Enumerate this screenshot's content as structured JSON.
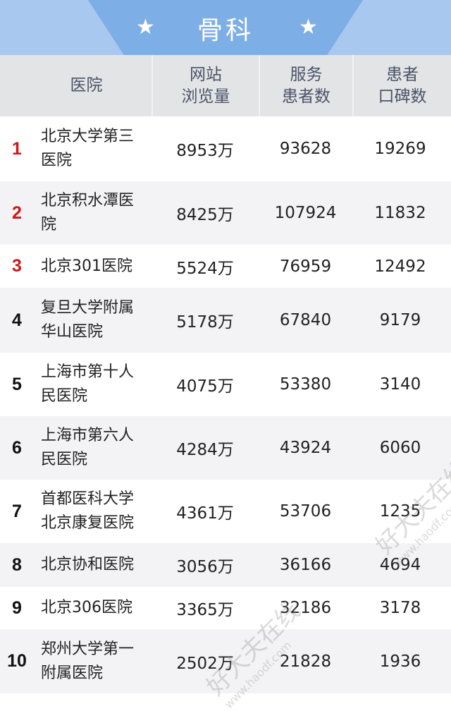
{
  "banner": {
    "title": "骨科",
    "star": "★"
  },
  "columns": [
    "医院",
    "网站\n浏览量",
    "服务\n患者数",
    "患者\n口碑数"
  ],
  "rows": [
    {
      "rank": "1",
      "name": "北京大学第三医院",
      "views": "8953万",
      "patients": "93628",
      "reviews": "19269"
    },
    {
      "rank": "2",
      "name": "北京积水潭医院",
      "views": "8425万",
      "patients": "107924",
      "reviews": "11832"
    },
    {
      "rank": "3",
      "name": "北京301医院",
      "views": "5524万",
      "patients": "76959",
      "reviews": "12492"
    },
    {
      "rank": "4",
      "name": "复旦大学附属华山医院",
      "views": "5178万",
      "patients": "67840",
      "reviews": "9179"
    },
    {
      "rank": "5",
      "name": "上海市第十人民医院",
      "views": "4075万",
      "patients": "53380",
      "reviews": "3140"
    },
    {
      "rank": "6",
      "name": "上海市第六人民医院",
      "views": "4284万",
      "patients": "43924",
      "reviews": "6060"
    },
    {
      "rank": "7",
      "name": "首都医科大学北京康复医院",
      "views": "4361万",
      "patients": "53706",
      "reviews": "1235"
    },
    {
      "rank": "8",
      "name": "北京协和医院",
      "views": "3056万",
      "patients": "36166",
      "reviews": "4694"
    },
    {
      "rank": "9",
      "name": "北京306医院",
      "views": "3365万",
      "patients": "32186",
      "reviews": "3178"
    },
    {
      "rank": "10",
      "name": "郑州大学第一附属医院",
      "views": "2502万",
      "patients": "21828",
      "reviews": "1936"
    }
  ],
  "colors": {
    "top_rank": "#d0161b",
    "rank": "#111111",
    "banner": "#7eaee6",
    "header_bg": "#e3e4e6",
    "alt_row": "#f3f3f5"
  },
  "watermark": {
    "brand": "好大夫在线",
    "url": "www.haodf.com"
  }
}
